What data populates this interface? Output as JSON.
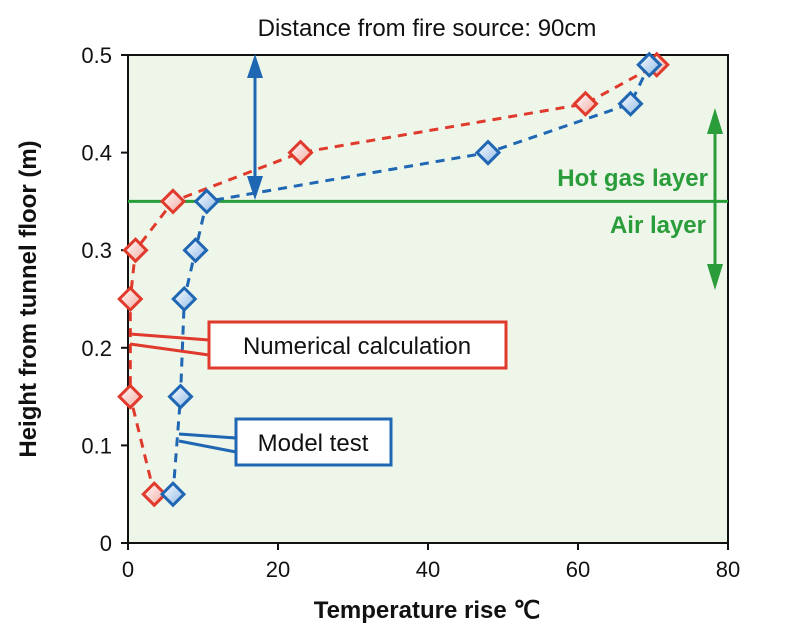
{
  "chart_data": {
    "type": "scatter",
    "title": "Distance from fire source: 90cm",
    "xlabel": "Temperature rise ℃",
    "ylabel": "Height from tunnel floor (m)",
    "xlim": [
      0,
      80
    ],
    "ylim": [
      0,
      0.5
    ],
    "xticks": [
      "0",
      "20",
      "40",
      "60",
      "80"
    ],
    "yticks": [
      "0",
      "0.1",
      "0.2",
      "0.3",
      "0.4",
      "0.5"
    ],
    "grid": false,
    "background_color": "#eef6ea",
    "series": [
      {
        "name": "Numerical calculation",
        "color": "#e03a2c",
        "line_style": "dashed",
        "marker": "diamond",
        "points": [
          {
            "x": 3.5,
            "y": 0.05
          },
          {
            "x": 0.3,
            "y": 0.15
          },
          {
            "x": 0.3,
            "y": 0.25
          },
          {
            "x": 1.0,
            "y": 0.3
          },
          {
            "x": 6.0,
            "y": 0.35
          },
          {
            "x": 23.0,
            "y": 0.4
          },
          {
            "x": 61.0,
            "y": 0.45
          },
          {
            "x": 70.5,
            "y": 0.49
          }
        ]
      },
      {
        "name": "Model test",
        "color": "#1f66b3",
        "line_style": "dashed",
        "marker": "diamond",
        "points": [
          {
            "x": 6.0,
            "y": 0.05
          },
          {
            "x": 7.0,
            "y": 0.15
          },
          {
            "x": 7.5,
            "y": 0.25
          },
          {
            "x": 9.0,
            "y": 0.3
          },
          {
            "x": 10.5,
            "y": 0.35
          },
          {
            "x": 48.0,
            "y": 0.4
          },
          {
            "x": 67.0,
            "y": 0.45
          },
          {
            "x": 69.5,
            "y": 0.49
          }
        ]
      }
    ],
    "layer_boundary": {
      "y": 0.35,
      "color": "#2a9d3a",
      "upper_label": "Hot gas layer",
      "lower_label": "Air layer"
    }
  }
}
